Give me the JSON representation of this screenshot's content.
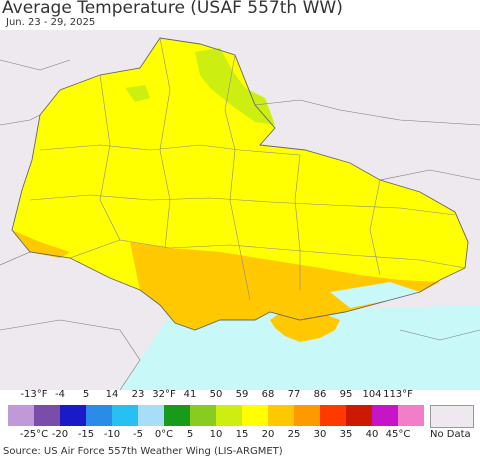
{
  "header": {
    "title": "Average Temperature (USAF 557th WW)",
    "date_range": "Jun. 23 - 29, 2025"
  },
  "legend": {
    "colors": [
      "#c09ad8",
      "#7b4ca8",
      "#1a1ac8",
      "#2a8ce8",
      "#28c0f0",
      "#a8ddf8",
      "#1a9a1a",
      "#88cc22",
      "#ccee11",
      "#ffff00",
      "#ffc800",
      "#ff9900",
      "#ff3a00",
      "#cc1a00",
      "#c814c8",
      "#f07ec8"
    ],
    "fahrenheit_ticks": [
      "-13°F",
      "-4",
      "5",
      "14",
      "23",
      "32°F",
      "41",
      "50",
      "59",
      "68",
      "77",
      "86",
      "95",
      "104",
      "113°F"
    ],
    "celsius_ticks": [
      "-25°C",
      "-20",
      "-15",
      "-10",
      "-5",
      "0°C",
      "5",
      "10",
      "15",
      "20",
      "25",
      "30",
      "35",
      "40",
      "45°C"
    ],
    "no_data_label": "No Data",
    "no_data_color": "#ede9ee"
  },
  "map": {
    "ocean_color": "#c8f8f8",
    "outside_color": "#ede9ee",
    "main_temperature_color": "#ffff00",
    "south_temperature_color": "#ffc800",
    "cool_patch_color": "#ccee11",
    "coolest_patch_color": "#88cc22",
    "border_color": "#666666"
  },
  "footer": {
    "source": "Source: US Air Force 557th Weather Wing (LIS-ARGMET)"
  }
}
